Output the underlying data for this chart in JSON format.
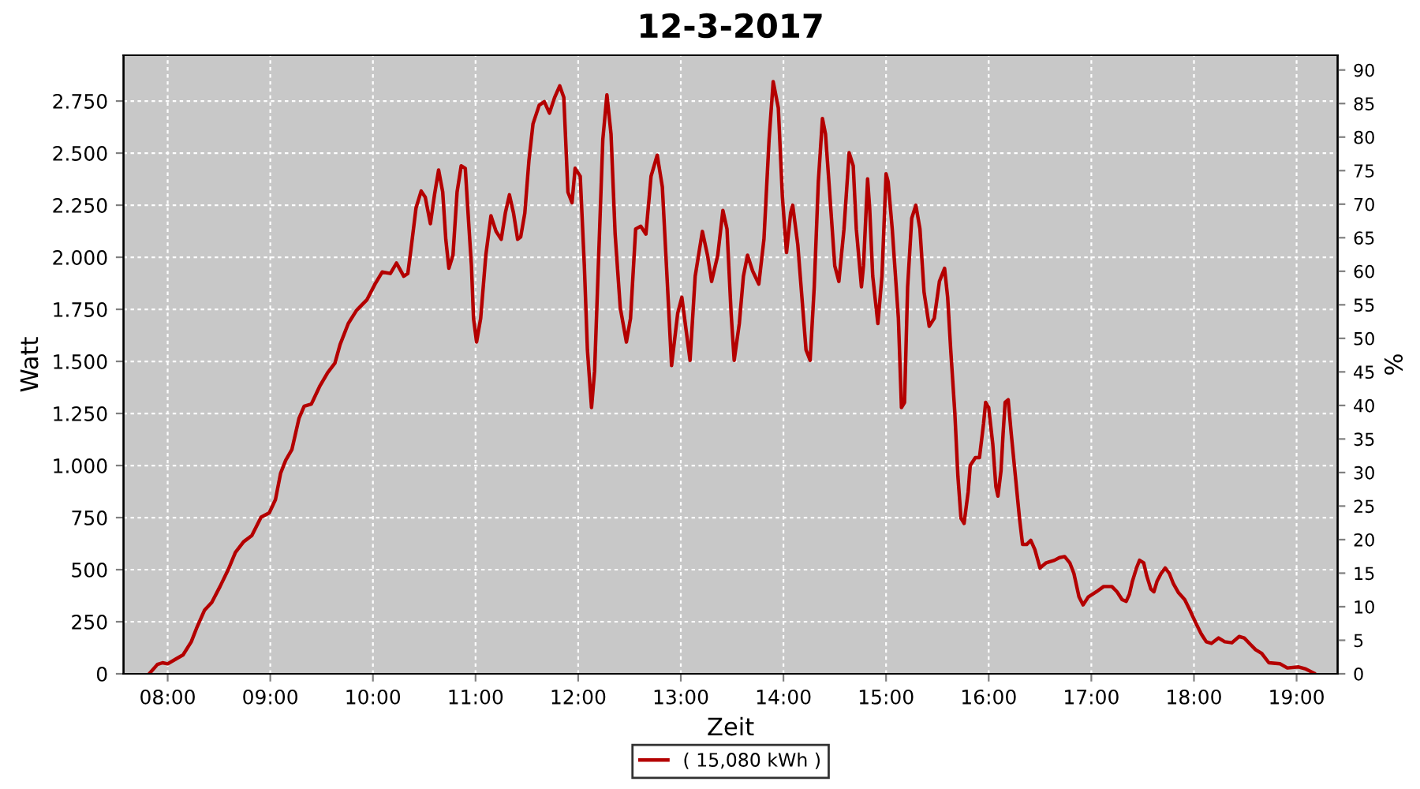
{
  "chart_data": {
    "type": "line",
    "title": "12-3-2017",
    "xlabel": "Zeit",
    "ylabel": "Watt",
    "y2label": "%",
    "x": [
      7.82,
      7.9,
      7.95,
      8.0,
      8.08,
      8.15,
      8.23,
      8.28,
      8.36,
      8.43,
      8.51,
      8.59,
      8.66,
      8.74,
      8.82,
      8.91,
      8.99,
      9.05,
      9.1,
      9.15,
      9.21,
      9.28,
      9.33,
      9.4,
      9.48,
      9.56,
      9.63,
      9.68,
      9.76,
      9.84,
      9.94,
      10.02,
      10.09,
      10.17,
      10.23,
      10.3,
      10.34,
      10.37,
      10.42,
      10.47,
      10.51,
      10.56,
      10.6,
      10.64,
      10.68,
      10.71,
      10.74,
      10.78,
      10.82,
      10.86,
      10.9,
      10.93,
      10.96,
      10.98,
      11.01,
      11.05,
      11.1,
      11.15,
      11.2,
      11.25,
      11.29,
      11.33,
      11.37,
      11.41,
      11.44,
      11.48,
      11.52,
      11.56,
      11.62,
      11.67,
      11.72,
      11.77,
      11.82,
      11.86,
      11.9,
      11.94,
      11.97,
      12.02,
      12.06,
      12.09,
      12.13,
      12.16,
      12.2,
      12.24,
      12.28,
      12.32,
      12.36,
      12.41,
      12.47,
      12.51,
      12.56,
      12.61,
      12.66,
      12.71,
      12.77,
      12.82,
      12.86,
      12.91,
      12.97,
      13.01,
      13.05,
      13.09,
      13.14,
      13.21,
      13.26,
      13.3,
      13.36,
      13.41,
      13.45,
      13.49,
      13.52,
      13.57,
      13.61,
      13.65,
      13.7,
      13.76,
      13.81,
      13.86,
      13.9,
      13.95,
      13.99,
      14.03,
      14.07,
      14.09,
      14.14,
      14.22,
      14.26,
      14.3,
      14.34,
      14.38,
      14.41,
      14.45,
      14.5,
      14.54,
      14.59,
      14.64,
      14.68,
      14.71,
      14.76,
      14.78,
      14.82,
      14.84,
      14.87,
      14.92,
      14.96,
      15.0,
      15.02,
      15.06,
      15.12,
      15.15,
      15.18,
      15.21,
      15.25,
      15.29,
      15.33,
      15.37,
      15.42,
      15.47,
      15.52,
      15.57,
      15.6,
      15.63,
      15.67,
      15.7,
      15.73,
      15.76,
      15.8,
      15.82,
      15.87,
      15.91,
      15.95,
      15.97,
      16.0,
      16.04,
      16.07,
      16.09,
      16.12,
      16.14,
      16.16,
      16.19,
      16.22,
      16.26,
      16.3,
      16.33,
      16.37,
      16.41,
      16.45,
      16.5,
      16.56,
      16.64,
      16.69,
      16.74,
      16.79,
      16.83,
      16.88,
      16.92,
      16.97,
      17.05,
      17.12,
      17.2,
      17.25,
      17.3,
      17.34,
      17.37,
      17.4,
      17.44,
      17.47,
      17.51,
      17.54,
      17.58,
      17.61,
      17.64,
      17.68,
      17.72,
      17.76,
      17.8,
      17.85,
      17.91,
      17.96,
      18.02,
      18.07,
      18.12,
      18.17,
      18.24,
      18.3,
      18.37,
      18.44,
      18.49,
      18.55,
      18.6,
      18.66,
      18.73,
      18.84,
      18.91,
      19.02,
      19.09,
      19.15,
      19.17
    ],
    "series": [
      {
        "name": "( 15,080 kWh )",
        "color": "#b40000",
        "values": [
          0,
          45,
          53,
          48,
          71,
          91,
          154,
          217,
          306,
          343,
          419,
          500,
          583,
          634,
          664,
          752,
          773,
          836,
          962,
          1025,
          1076,
          1227,
          1285,
          1295,
          1379,
          1447,
          1492,
          1581,
          1682,
          1745,
          1795,
          1871,
          1929,
          1922,
          1972,
          1909,
          1922,
          2035,
          2237,
          2318,
          2288,
          2161,
          2300,
          2419,
          2313,
          2086,
          1947,
          2010,
          2313,
          2439,
          2427,
          2187,
          1959,
          1707,
          1593,
          1707,
          2010,
          2199,
          2124,
          2086,
          2212,
          2300,
          2212,
          2086,
          2098,
          2212,
          2464,
          2641,
          2730,
          2747,
          2692,
          2767,
          2823,
          2767,
          2313,
          2262,
          2427,
          2389,
          1959,
          1555,
          1278,
          1454,
          2010,
          2565,
          2780,
          2591,
          2111,
          1757,
          1593,
          1707,
          2136,
          2149,
          2111,
          2389,
          2490,
          2338,
          1959,
          1480,
          1732,
          1808,
          1656,
          1505,
          1909,
          2124,
          2010,
          1884,
          2010,
          2225,
          2136,
          1732,
          1505,
          1682,
          1909,
          2010,
          1934,
          1871,
          2086,
          2565,
          2843,
          2717,
          2288,
          2023,
          2212,
          2250,
          2060,
          1555,
          1505,
          1858,
          2363,
          2666,
          2591,
          2313,
          1959,
          1884,
          2136,
          2502,
          2439,
          2136,
          1858,
          1959,
          2376,
          2237,
          1909,
          1682,
          1909,
          2401,
          2363,
          2136,
          1707,
          1278,
          1303,
          1858,
          2187,
          2250,
          2136,
          1833,
          1669,
          1707,
          1884,
          1947,
          1808,
          1555,
          1252,
          949,
          747,
          722,
          874,
          1000,
          1038,
          1038,
          1202,
          1303,
          1278,
          1101,
          899,
          853,
          975,
          1151,
          1303,
          1316,
          1151,
          949,
          747,
          621,
          621,
          641,
          596,
          508,
          533,
          545,
          558,
          563,
          533,
          482,
          369,
          331,
          369,
          394,
          419,
          419,
          394,
          356,
          348,
          381,
          444,
          508,
          545,
          533,
          470,
          407,
          394,
          444,
          482,
          508,
          482,
          432,
          389,
          356,
          306,
          242,
          192,
          154,
          146,
          172,
          154,
          149,
          179,
          172,
          141,
          116,
          98,
          53,
          48,
          28,
          33,
          23,
          8,
          3
        ]
      }
    ],
    "xlim": [
      7.57,
      19.4
    ],
    "xticks": [
      {
        "value": 8,
        "label": "08:00"
      },
      {
        "value": 9,
        "label": "09:00"
      },
      {
        "value": 10,
        "label": "10:00"
      },
      {
        "value": 11,
        "label": "11:00"
      },
      {
        "value": 12,
        "label": "12:00"
      },
      {
        "value": 13,
        "label": "13:00"
      },
      {
        "value": 14,
        "label": "14:00"
      },
      {
        "value": 15,
        "label": "15:00"
      },
      {
        "value": 16,
        "label": "16:00"
      },
      {
        "value": 17,
        "label": "17:00"
      },
      {
        "value": 18,
        "label": "18:00"
      },
      {
        "value": 19,
        "label": "19:00"
      }
    ],
    "ylim": [
      0,
      2970
    ],
    "yticks": [
      0,
      250,
      500,
      750,
      {
        "value": 1000,
        "label": "1.000"
      },
      {
        "value": 1250,
        "label": "1.250"
      },
      {
        "value": 1500,
        "label": "1.500"
      },
      {
        "value": 1750,
        "label": "1.750"
      },
      {
        "value": 2000,
        "label": "2.000"
      },
      {
        "value": 2250,
        "label": "2.250"
      },
      {
        "value": 2500,
        "label": "2.500"
      },
      {
        "value": 2750,
        "label": "2.750"
      }
    ],
    "y2lim": [
      0,
      92.2
    ],
    "y2ticks": [
      0,
      5,
      10,
      15,
      20,
      25,
      30,
      35,
      40,
      45,
      50,
      55,
      60,
      65,
      70,
      75,
      80,
      85,
      90
    ],
    "grid": true,
    "legend": "bottom",
    "marker": "none",
    "line_style": "solid"
  }
}
